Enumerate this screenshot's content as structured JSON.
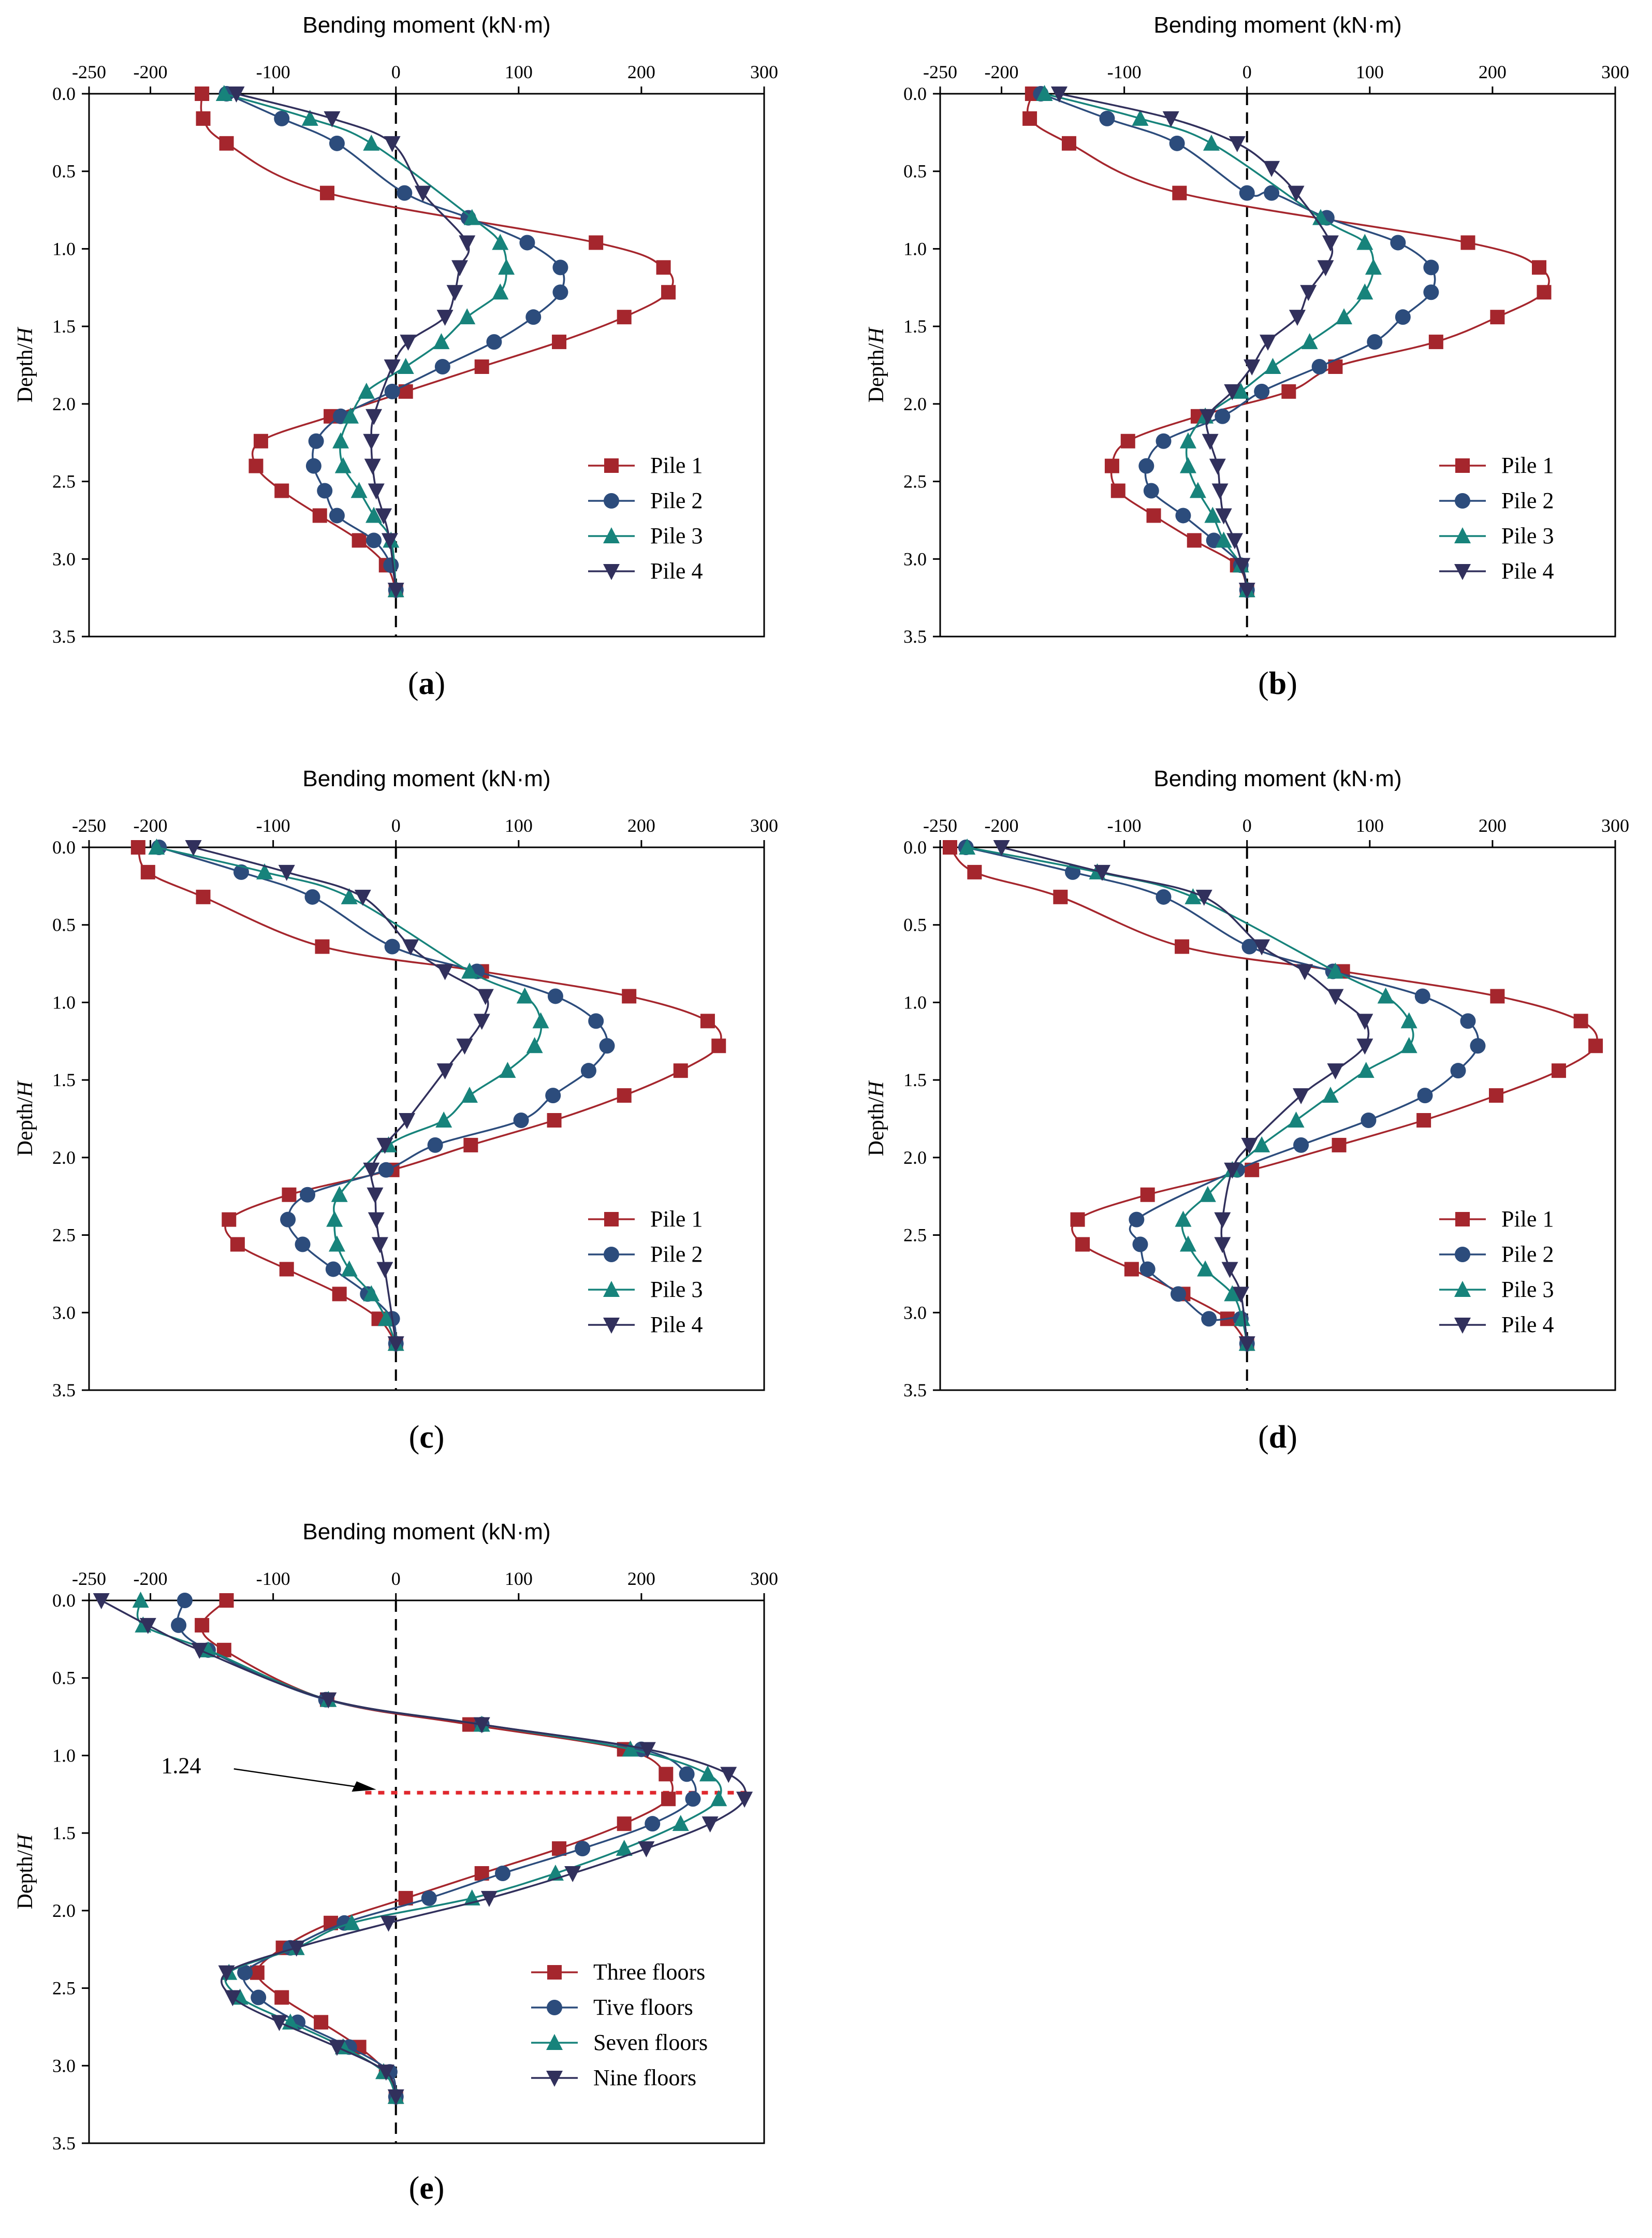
{
  "figure": {
    "xaxis_title": "Bending moment (kN·m)",
    "yaxis_title": "Depth/H",
    "xticks": [
      "-250",
      "-200",
      "-100",
      "0",
      "100",
      "200",
      "300"
    ],
    "yticks": [
      "0.0",
      "0.5",
      "1.0",
      "1.5",
      "2.0",
      "2.5",
      "3.0",
      "3.5"
    ]
  },
  "colors": {
    "red": "#a5262d",
    "blue": "#2c4c7c",
    "teal": "#17837b",
    "navy": "#31305c"
  },
  "chart_data": [
    {
      "type": "line",
      "panel_label": "a",
      "xlabel": "Bending moment (kN·m)",
      "ylabel": "Depth/H",
      "xlim": [
        -250,
        300
      ],
      "ylim": [
        3.5,
        0.0
      ],
      "legend_position": "lower-right",
      "series": [
        {
          "name": "Pile 1",
          "marker": "square",
          "color": "#a5262d",
          "x": [
            -158,
            -157,
            -138,
            -56,
            163,
            218,
            222,
            186,
            133,
            70,
            8,
            -53,
            -110,
            -114,
            -93,
            -62,
            -30,
            -8,
            0
          ],
          "y": [
            0.0,
            0.16,
            0.32,
            0.64,
            0.96,
            1.12,
            1.28,
            1.44,
            1.6,
            1.76,
            1.92,
            2.08,
            2.24,
            2.4,
            2.56,
            2.72,
            2.88,
            3.04,
            3.2
          ]
        },
        {
          "name": "Pile 2",
          "marker": "circle",
          "color": "#2c4c7c",
          "x": [
            -138,
            -93,
            -48,
            7,
            59,
            107,
            134,
            134,
            112,
            80,
            38,
            -3,
            -45,
            -65,
            -67,
            -58,
            -48,
            -18,
            -4,
            0
          ],
          "y": [
            0.0,
            0.16,
            0.32,
            0.64,
            0.8,
            0.96,
            1.12,
            1.28,
            1.44,
            1.6,
            1.76,
            1.92,
            2.08,
            2.24,
            2.4,
            2.56,
            2.72,
            2.88,
            3.04,
            3.2
          ]
        },
        {
          "name": "Pile 3",
          "marker": "triangle-up",
          "color": "#17837b",
          "x": [
            -140,
            -70,
            -20,
            62,
            85,
            90,
            85,
            58,
            37,
            8,
            -24,
            -37,
            -45,
            -43,
            -30,
            -18,
            -4,
            0
          ],
          "y": [
            0.0,
            0.16,
            0.32,
            0.8,
            0.96,
            1.12,
            1.28,
            1.44,
            1.6,
            1.76,
            1.92,
            2.08,
            2.24,
            2.4,
            2.56,
            2.72,
            2.88,
            3.2
          ]
        },
        {
          "name": "Pile 4",
          "marker": "triangle-down",
          "color": "#31305c",
          "x": [
            -130,
            -52,
            -3,
            22,
            58,
            52,
            48,
            40,
            10,
            -3,
            -18,
            -20,
            -19,
            -16,
            -10,
            -5,
            0
          ],
          "y": [
            0.0,
            0.16,
            0.32,
            0.64,
            0.96,
            1.12,
            1.28,
            1.44,
            1.6,
            1.76,
            2.08,
            2.24,
            2.4,
            2.56,
            2.72,
            2.88,
            3.2
          ]
        }
      ]
    },
    {
      "type": "line",
      "panel_label": "b",
      "xlabel": "Bending moment (kN·m)",
      "ylabel": "Depth/H",
      "xlim": [
        -250,
        300
      ],
      "ylim": [
        3.5,
        0.0
      ],
      "legend_position": "lower-right",
      "series": [
        {
          "name": "Pile 1",
          "marker": "square",
          "color": "#a5262d",
          "x": [
            -175,
            -177,
            -145,
            -55,
            180,
            238,
            242,
            204,
            154,
            72,
            34,
            -40,
            -97,
            -110,
            -105,
            -76,
            -43,
            -8,
            0
          ],
          "y": [
            0.0,
            0.16,
            0.32,
            0.64,
            0.96,
            1.12,
            1.28,
            1.44,
            1.6,
            1.76,
            1.92,
            2.08,
            2.24,
            2.4,
            2.56,
            2.72,
            2.88,
            3.04,
            3.2
          ]
        },
        {
          "name": "Pile 2",
          "marker": "circle",
          "color": "#2c4c7c",
          "x": [
            -168,
            -114,
            -57,
            0,
            20,
            65,
            123,
            150,
            150,
            127,
            104,
            59,
            12,
            -20,
            -68,
            -82,
            -78,
            -52,
            -27,
            -5,
            0
          ],
          "y": [
            0.0,
            0.16,
            0.32,
            0.64,
            0.64,
            0.8,
            0.96,
            1.12,
            1.28,
            1.44,
            1.6,
            1.76,
            1.92,
            2.08,
            2.24,
            2.4,
            2.56,
            2.72,
            2.88,
            3.04,
            3.2
          ]
        },
        {
          "name": "Pile 3",
          "marker": "triangle-up",
          "color": "#17837b",
          "x": [
            -165,
            -87,
            -29,
            60,
            96,
            103,
            96,
            79,
            51,
            21,
            -5,
            -34,
            -48,
            -48,
            -40,
            -28,
            -19,
            -5,
            0
          ],
          "y": [
            0.0,
            0.16,
            0.32,
            0.8,
            0.96,
            1.12,
            1.28,
            1.44,
            1.6,
            1.76,
            1.92,
            2.08,
            2.24,
            2.4,
            2.56,
            2.72,
            2.88,
            3.04,
            3.2
          ]
        },
        {
          "name": "Pile 4",
          "marker": "triangle-down",
          "color": "#31305c",
          "x": [
            -153,
            -62,
            -8,
            20,
            40,
            68,
            64,
            50,
            41,
            17,
            4,
            -12,
            -32,
            -30,
            -24,
            -22,
            -19,
            -10,
            -4,
            0
          ],
          "y": [
            0.0,
            0.16,
            0.32,
            0.48,
            0.64,
            0.96,
            1.12,
            1.28,
            1.44,
            1.6,
            1.76,
            1.92,
            2.08,
            2.24,
            2.4,
            2.56,
            2.72,
            2.88,
            3.04,
            3.2
          ]
        }
      ]
    },
    {
      "type": "line",
      "panel_label": "c",
      "xlabel": "Bending moment (kN·m)",
      "ylabel": "Depth/H",
      "xlim": [
        -250,
        300
      ],
      "ylim": [
        3.5,
        0.0
      ],
      "legend_position": "lower-right",
      "series": [
        {
          "name": "Pile 1",
          "marker": "square",
          "color": "#a5262d",
          "x": [
            -210,
            -202,
            -157,
            -60,
            70,
            190,
            254,
            263,
            232,
            186,
            129,
            61,
            -3,
            -87,
            -136,
            -129,
            -89,
            -46,
            -14,
            0
          ],
          "y": [
            0.0,
            0.16,
            0.32,
            0.64,
            0.8,
            0.96,
            1.12,
            1.28,
            1.44,
            1.6,
            1.76,
            1.92,
            2.08,
            2.24,
            2.4,
            2.56,
            2.72,
            2.88,
            3.04,
            3.2
          ]
        },
        {
          "name": "Pile 2",
          "marker": "circle",
          "color": "#2c4c7c",
          "x": [
            -193,
            -126,
            -68,
            -3,
            66,
            130,
            163,
            172,
            157,
            128,
            102,
            32,
            -8,
            -72,
            -88,
            -76,
            -51,
            -23,
            -3,
            0
          ],
          "y": [
            0.0,
            0.16,
            0.32,
            0.64,
            0.8,
            0.96,
            1.12,
            1.28,
            1.44,
            1.6,
            1.76,
            1.92,
            2.08,
            2.24,
            2.4,
            2.56,
            2.72,
            2.88,
            3.04,
            3.2
          ]
        },
        {
          "name": "Pile 3",
          "marker": "triangle-up",
          "color": "#17837b",
          "x": [
            -195,
            -107,
            -38,
            60,
            105,
            118,
            113,
            91,
            60,
            39,
            -6,
            -46,
            -50,
            -48,
            -38,
            -20,
            -8,
            0
          ],
          "y": [
            0.0,
            0.16,
            0.32,
            0.8,
            0.96,
            1.12,
            1.28,
            1.44,
            1.6,
            1.76,
            1.92,
            2.24,
            2.4,
            2.56,
            2.72,
            2.88,
            3.04,
            3.2
          ]
        },
        {
          "name": "Pile 4",
          "marker": "triangle-down",
          "color": "#31305c",
          "x": [
            -165,
            -89,
            -27,
            12,
            40,
            73,
            70,
            56,
            40,
            9,
            -9,
            -20,
            -17,
            -16,
            -13,
            -9,
            0
          ],
          "y": [
            0.0,
            0.16,
            0.32,
            0.64,
            0.8,
            0.96,
            1.12,
            1.28,
            1.44,
            1.76,
            1.92,
            2.08,
            2.24,
            2.4,
            2.56,
            2.72,
            3.2
          ]
        }
      ]
    },
    {
      "type": "line",
      "panel_label": "d",
      "xlabel": "Bending moment (kN·m)",
      "ylabel": "Depth/H",
      "xlim": [
        -250,
        300
      ],
      "ylim": [
        3.5,
        0.0
      ],
      "legend_position": "lower-right",
      "series": [
        {
          "name": "Pile 1",
          "marker": "square",
          "color": "#a5262d",
          "x": [
            -242,
            -222,
            -152,
            -53,
            78,
            204,
            272,
            284,
            254,
            203,
            144,
            75,
            4,
            -81,
            -138,
            -134,
            -94,
            -52,
            -16,
            0
          ],
          "y": [
            0.0,
            0.16,
            0.32,
            0.64,
            0.8,
            0.96,
            1.12,
            1.28,
            1.44,
            1.6,
            1.76,
            1.92,
            2.08,
            2.24,
            2.4,
            2.56,
            2.72,
            2.88,
            3.04,
            3.2
          ]
        },
        {
          "name": "Pile 2",
          "marker": "circle",
          "color": "#2c4c7c",
          "x": [
            -229,
            -142,
            -68,
            2,
            70,
            143,
            180,
            188,
            172,
            145,
            99,
            44,
            -8,
            -90,
            -87,
            -81,
            -56,
            -31,
            -5,
            0
          ],
          "y": [
            0.0,
            0.16,
            0.32,
            0.64,
            0.8,
            0.96,
            1.12,
            1.28,
            1.44,
            1.6,
            1.76,
            1.92,
            2.08,
            2.4,
            2.56,
            2.72,
            2.88,
            3.04,
            3.04,
            3.2
          ]
        },
        {
          "name": "Pile 3",
          "marker": "triangle-up",
          "color": "#17837b",
          "x": [
            -228,
            -122,
            -44,
            72,
            113,
            132,
            132,
            97,
            68,
            40,
            12,
            -12,
            -32,
            -52,
            -48,
            -34,
            -12,
            -4,
            0
          ],
          "y": [
            0.0,
            0.16,
            0.32,
            0.8,
            0.96,
            1.12,
            1.28,
            1.44,
            1.6,
            1.76,
            1.92,
            2.08,
            2.24,
            2.4,
            2.56,
            2.72,
            2.88,
            3.04,
            3.2
          ]
        },
        {
          "name": "Pile 4",
          "marker": "triangle-down",
          "color": "#31305c",
          "x": [
            -200,
            -118,
            -35,
            12,
            47,
            72,
            96,
            96,
            72,
            44,
            2,
            -12,
            -20,
            -20,
            -14,
            -5,
            0
          ],
          "y": [
            0.0,
            0.16,
            0.32,
            0.64,
            0.8,
            0.96,
            1.12,
            1.28,
            1.44,
            1.6,
            1.92,
            2.08,
            2.4,
            2.56,
            2.72,
            2.88,
            3.2
          ]
        }
      ]
    },
    {
      "type": "line",
      "panel_label": "e",
      "xlabel": "Bending moment (kN·m)",
      "ylabel": "Depth/H",
      "xlim": [
        -250,
        300
      ],
      "ylim": [
        3.5,
        0.0
      ],
      "legend_position": "lower-right",
      "annotation": {
        "text": "1.24",
        "depth": 1.24
      },
      "series": [
        {
          "name": "Three floors",
          "marker": "square",
          "color": "#a5262d",
          "x": [
            -138,
            -158,
            -140,
            -56,
            60,
            186,
            220,
            222,
            186,
            133,
            70,
            8,
            -53,
            -92,
            -113,
            -93,
            -61,
            -30,
            -8,
            0
          ],
          "y": [
            0.0,
            0.16,
            0.32,
            0.64,
            0.8,
            0.96,
            1.12,
            1.28,
            1.44,
            1.6,
            1.76,
            1.92,
            2.08,
            2.24,
            2.4,
            2.56,
            2.72,
            2.88,
            3.04,
            3.2
          ]
        },
        {
          "name": "Tive floors",
          "marker": "circle",
          "color": "#2c4c7c",
          "x": [
            -172,
            -177,
            -153,
            -57,
            70,
            200,
            237,
            242,
            209,
            152,
            87,
            27,
            -42,
            -86,
            -123,
            -112,
            -80,
            -38,
            -5,
            0
          ],
          "y": [
            0.0,
            0.16,
            0.32,
            0.64,
            0.8,
            0.96,
            1.12,
            1.28,
            1.44,
            1.6,
            1.76,
            1.92,
            2.08,
            2.24,
            2.4,
            2.56,
            2.72,
            2.88,
            3.04,
            3.2
          ]
        },
        {
          "name": "Seven floors",
          "marker": "triangle-up",
          "color": "#17837b",
          "x": [
            -208,
            -206,
            -153,
            -55,
            70,
            191,
            254,
            263,
            232,
            186,
            130,
            62,
            -36,
            -81,
            -136,
            -127,
            -86,
            -43,
            -10,
            0
          ],
          "y": [
            0.0,
            0.16,
            0.32,
            0.64,
            0.8,
            0.96,
            1.12,
            1.28,
            1.44,
            1.6,
            1.76,
            1.92,
            2.08,
            2.24,
            2.4,
            2.56,
            2.72,
            2.88,
            3.04,
            3.2
          ]
        },
        {
          "name": "Nine floors",
          "marker": "triangle-down",
          "color": "#31305c",
          "x": [
            -240,
            -202,
            -160,
            -55,
            70,
            205,
            271,
            284,
            256,
            204,
            144,
            76,
            -6,
            -81,
            -138,
            -133,
            -95,
            -48,
            -8,
            0
          ],
          "y": [
            0.0,
            0.16,
            0.32,
            0.64,
            0.8,
            0.96,
            1.12,
            1.28,
            1.44,
            1.6,
            1.76,
            1.92,
            2.08,
            2.24,
            2.4,
            2.56,
            2.72,
            2.88,
            3.04,
            3.2
          ]
        }
      ]
    }
  ]
}
